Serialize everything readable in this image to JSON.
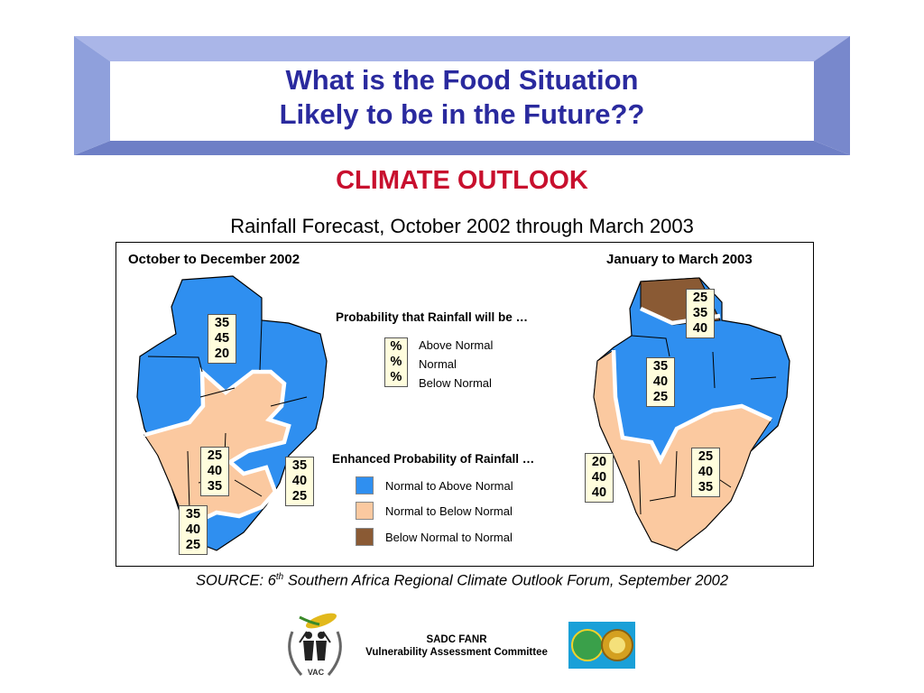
{
  "slide": {
    "title_lines": [
      "What is the Food Situation",
      "Likely to be in the Future??"
    ],
    "subtitle": "CLIMATE OUTLOOK",
    "forecast_title": "Rainfall Forecast, October 2002 through March 2003",
    "source_prefix": "SOURCE: 6",
    "source_sup": "th",
    "source_suffix": " Southern Africa Regional Climate Outlook Forum, September 2002"
  },
  "maps": {
    "left": {
      "period": "October to December 2002",
      "boxes": [
        [
          "35",
          "45",
          "20"
        ],
        [
          "25",
          "40",
          "35"
        ],
        [
          "35",
          "40",
          "25"
        ],
        [
          "35",
          "40",
          "25"
        ]
      ]
    },
    "right": {
      "period": "January to March 2003",
      "boxes": [
        [
          "25",
          "35",
          "40"
        ],
        [
          "35",
          "40",
          "25"
        ],
        [
          "20",
          "40",
          "40"
        ],
        [
          "25",
          "40",
          "35"
        ]
      ]
    }
  },
  "legend": {
    "probability_heading": "Probability that Rainfall will be …",
    "pct_symbols": [
      "%",
      "%",
      "%"
    ],
    "pct_labels": [
      "Above Normal",
      "Normal",
      "Below Normal"
    ],
    "enhanced_heading": "Enhanced Probability of Rainfall …",
    "categories": [
      {
        "label": "Normal to Above Normal",
        "color": "#2f8ff0"
      },
      {
        "label": "Normal to Below Normal",
        "color": "#fbc9a0"
      },
      {
        "label": "Below Normal to Normal",
        "color": "#8a5a34"
      }
    ]
  },
  "colors": {
    "blue": "#2f8ff0",
    "peach": "#fbc9a0",
    "brown": "#8a5a34",
    "title": "#2a2a9e",
    "subtitle": "#c8102e",
    "banner": "#8fa0dc"
  },
  "footer": {
    "org_lines": [
      "SADC FANR",
      "Vulnerability Assessment Committee"
    ],
    "vac_logo_text": "VAC"
  }
}
